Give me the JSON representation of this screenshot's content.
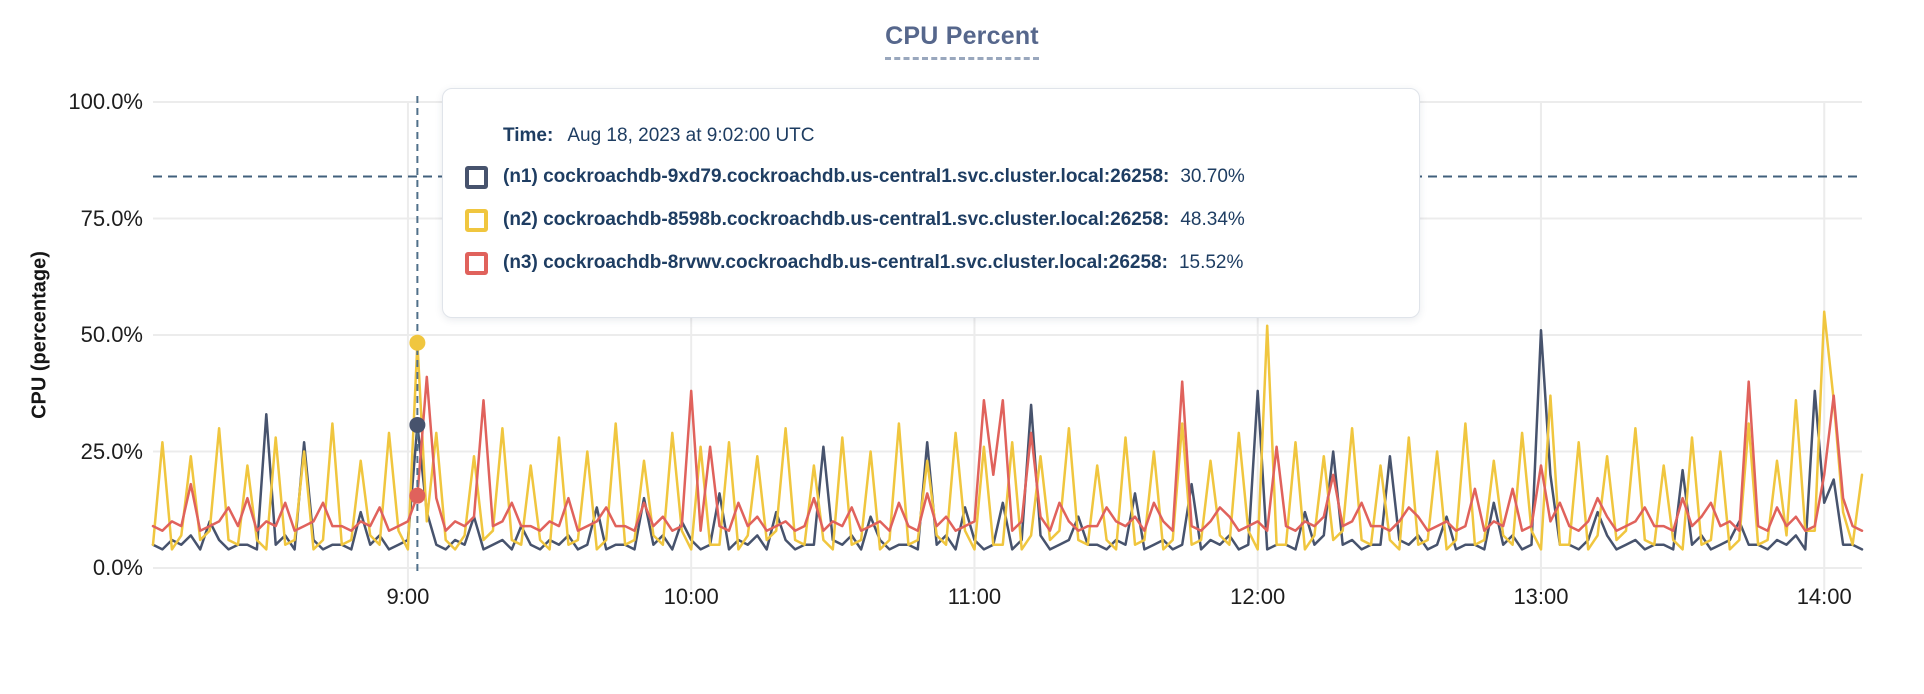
{
  "title": "CPU Percent",
  "y_axis_title": "CPU (percentage)",
  "tooltip": {
    "time_label": "Time:",
    "time_value": "Aug 18, 2023 at 9:02:00 UTC",
    "rows": [
      {
        "name": "(n1) cockroachdb-9xd79.cockroachdb.us-central1.svc.cluster.local:26258:",
        "value": "30.70%",
        "color": "#47536d"
      },
      {
        "name": "(n2) cockroachdb-8598b.cockroachdb.us-central1.svc.cluster.local:26258:",
        "value": "48.34%",
        "color": "#f0c63f"
      },
      {
        "name": "(n3) cockroachdb-8rvwv.cockroachdb.us-central1.svc.cluster.local:26258:",
        "value": "15.52%",
        "color": "#e0625c"
      }
    ]
  },
  "colors": {
    "grid": "#ececec",
    "threshold_line": "#41607c",
    "crosshair_line": "#50708a",
    "axis_text": "#1d1d1d",
    "title_text": "#56678c"
  },
  "chart_data": {
    "type": "line",
    "title": "CPU Percent",
    "xlabel": "",
    "ylabel": "CPU (percentage)",
    "ylim": [
      0,
      100
    ],
    "grid": true,
    "legend_position": "tooltip-overlay",
    "y_ticks": [
      {
        "label": "0.0%",
        "value": 0
      },
      {
        "label": "25.0%",
        "value": 25
      },
      {
        "label": "50.0%",
        "value": 50
      },
      {
        "label": "75.0%",
        "value": 75
      },
      {
        "label": "100.0%",
        "value": 100
      }
    ],
    "x_ticks": [
      {
        "label": "9:00",
        "minutes": 54
      },
      {
        "label": "10:00",
        "minutes": 114
      },
      {
        "label": "11:00",
        "minutes": 174
      },
      {
        "label": "12:00",
        "minutes": 234
      },
      {
        "label": "13:00",
        "minutes": 294
      },
      {
        "label": "14:00",
        "minutes": 354
      }
    ],
    "x_start_minutes": 0,
    "x_step_minutes": 2,
    "x_total_minutes": 362,
    "threshold_percent": 84,
    "crosshair": {
      "time_minutes": 56,
      "time_label": "Aug 18, 2023 at 9:02:00 UTC",
      "values": [
        30.7,
        48.34,
        15.52
      ]
    },
    "series": [
      {
        "name": "(n1) cockroachdb-9xd79.cockroachdb.us-central1.svc.cluster.local:26258",
        "color": "#47536d",
        "hover_value": 30.7,
        "values": [
          5,
          4,
          6,
          5,
          7,
          4,
          10,
          6,
          4,
          5,
          5,
          4,
          33,
          5,
          7,
          4,
          27,
          6,
          4,
          5,
          5,
          4,
          12,
          5,
          7,
          4,
          5,
          6,
          30.7,
          12,
          5,
          4,
          6,
          5,
          11,
          4,
          5,
          6,
          4,
          9,
          5,
          4,
          6,
          5,
          7,
          4,
          5,
          13,
          4,
          5,
          5,
          4,
          15,
          5,
          7,
          4,
          10,
          6,
          4,
          5,
          16,
          4,
          6,
          5,
          7,
          4,
          12,
          6,
          4,
          5,
          5,
          26,
          6,
          5,
          7,
          4,
          11,
          6,
          4,
          5,
          5,
          4,
          27,
          5,
          7,
          4,
          13,
          6,
          4,
          5,
          14,
          4,
          6,
          35,
          7,
          4,
          5,
          6,
          11,
          5,
          5,
          4,
          6,
          5,
          16,
          4,
          5,
          6,
          4,
          5,
          18,
          4,
          6,
          5,
          7,
          4,
          5,
          38,
          4,
          5,
          5,
          4,
          12,
          5,
          7,
          25,
          5,
          6,
          4,
          5,
          5,
          24,
          6,
          5,
          7,
          4,
          5,
          11,
          4,
          5,
          5,
          4,
          14,
          5,
          7,
          4,
          5,
          51,
          20,
          5,
          5,
          4,
          6,
          12,
          7,
          4,
          5,
          6,
          4,
          5,
          5,
          4,
          21,
          5,
          7,
          4,
          5,
          6,
          10,
          5,
          5,
          4,
          6,
          5,
          7,
          4,
          38,
          14,
          19,
          5,
          5,
          4
        ]
      },
      {
        "name": "(n2) cockroachdb-8598b.cockroachdb.us-central1.svc.cluster.local:26258",
        "color": "#f0c63f",
        "hover_value": 48.34,
        "values": [
          5,
          27,
          4,
          7,
          24,
          6,
          8,
          30,
          6,
          5,
          22,
          6,
          4,
          28,
          5,
          6,
          25,
          4,
          6,
          31,
          5,
          6,
          23,
          7,
          5,
          29,
          8,
          4,
          48.34,
          10,
          29,
          6,
          4,
          7,
          24,
          6,
          8,
          30,
          6,
          5,
          22,
          6,
          4,
          28,
          5,
          6,
          25,
          4,
          6,
          31,
          5,
          6,
          23,
          7,
          5,
          29,
          8,
          4,
          26,
          5,
          5,
          27,
          4,
          7,
          24,
          6,
          8,
          30,
          6,
          5,
          22,
          6,
          4,
          28,
          5,
          6,
          25,
          4,
          6,
          31,
          5,
          6,
          23,
          7,
          5,
          29,
          8,
          4,
          26,
          5,
          5,
          27,
          4,
          7,
          24,
          6,
          8,
          30,
          6,
          5,
          22,
          6,
          4,
          28,
          5,
          6,
          25,
          4,
          6,
          31,
          5,
          6,
          23,
          7,
          5,
          29,
          8,
          4,
          52,
          5,
          5,
          27,
          4,
          7,
          24,
          6,
          8,
          30,
          6,
          5,
          22,
          6,
          4,
          28,
          5,
          6,
          25,
          4,
          6,
          31,
          5,
          6,
          23,
          7,
          5,
          29,
          8,
          4,
          37,
          5,
          5,
          27,
          4,
          7,
          24,
          6,
          8,
          30,
          6,
          5,
          22,
          6,
          4,
          28,
          5,
          6,
          25,
          4,
          6,
          31,
          5,
          6,
          23,
          7,
          36,
          8,
          8,
          55,
          36,
          12,
          5,
          20
        ]
      },
      {
        "name": "(n3) cockroachdb-8rvwv.cockroachdb.us-central1.svc.cluster.local:26258",
        "color": "#e0625c",
        "hover_value": 15.52,
        "values": [
          9,
          8,
          10,
          9,
          18,
          8,
          9,
          10,
          13,
          9,
          15,
          8,
          10,
          9,
          14,
          8,
          9,
          10,
          14,
          9,
          9,
          8,
          10,
          9,
          13,
          8,
          9,
          10,
          15.52,
          41,
          15,
          8,
          10,
          9,
          11,
          36,
          9,
          10,
          14,
          9,
          9,
          8,
          10,
          9,
          15,
          8,
          9,
          10,
          13,
          9,
          9,
          8,
          14,
          9,
          11,
          8,
          9,
          38,
          8,
          26,
          9,
          8,
          14,
          9,
          11,
          8,
          9,
          10,
          8,
          9,
          15,
          8,
          10,
          9,
          13,
          8,
          9,
          10,
          8,
          14,
          9,
          8,
          16,
          9,
          11,
          8,
          9,
          10,
          36,
          20,
          36,
          8,
          10,
          29,
          11,
          8,
          14,
          10,
          8,
          9,
          9,
          13,
          10,
          9,
          11,
          8,
          14,
          10,
          8,
          40,
          9,
          8,
          10,
          13,
          11,
          8,
          9,
          10,
          8,
          26,
          9,
          8,
          10,
          9,
          11,
          20,
          9,
          10,
          14,
          9,
          9,
          8,
          10,
          13,
          11,
          8,
          9,
          10,
          8,
          9,
          17,
          8,
          10,
          9,
          17,
          8,
          9,
          22,
          10,
          14,
          9,
          8,
          10,
          15,
          11,
          8,
          9,
          10,
          13,
          9,
          9,
          8,
          15,
          9,
          11,
          14,
          9,
          10,
          8,
          40,
          9,
          8,
          13,
          9,
          11,
          8,
          9,
          20,
          37,
          15,
          9,
          8
        ]
      }
    ]
  }
}
